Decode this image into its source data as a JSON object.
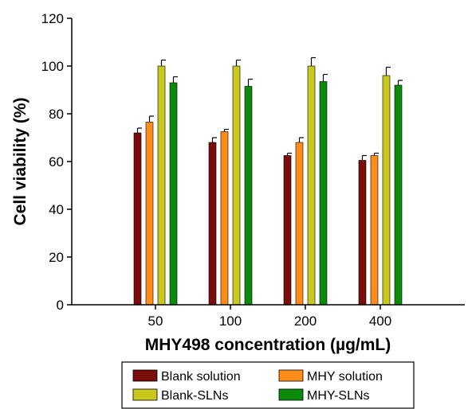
{
  "chart_data": {
    "type": "bar",
    "title": "",
    "xlabel": "MHY498 concentration (µg/mL)",
    "ylabel": "Cell viability (%)",
    "ylim": [
      0,
      120
    ],
    "yticks": [
      "0",
      "20",
      "40",
      "60",
      "80",
      "100",
      "120"
    ],
    "categories": [
      "50",
      "100",
      "200",
      "400"
    ],
    "legend": "bottom",
    "grid": false,
    "series": [
      {
        "name": "Blank solution",
        "color": "#7b0c0c",
        "values": [
          72,
          68,
          62.5,
          60.5
        ],
        "errors": [
          2,
          2,
          1,
          2
        ]
      },
      {
        "name": "MHY solution",
        "color": "#ff8c1a",
        "values": [
          76.5,
          72.5,
          68,
          62.5
        ],
        "errors": [
          2.5,
          1,
          2,
          1
        ]
      },
      {
        "name": "Blank-SLNs",
        "color": "#c8c81e",
        "values": [
          100,
          100,
          100,
          96
        ],
        "errors": [
          2.5,
          2.5,
          3.5,
          3.5
        ]
      },
      {
        "name": "MHY-SLNs",
        "color": "#0c8a0c",
        "values": [
          93,
          91.5,
          93.5,
          92
        ],
        "errors": [
          2.5,
          3,
          3,
          2
        ]
      }
    ]
  }
}
